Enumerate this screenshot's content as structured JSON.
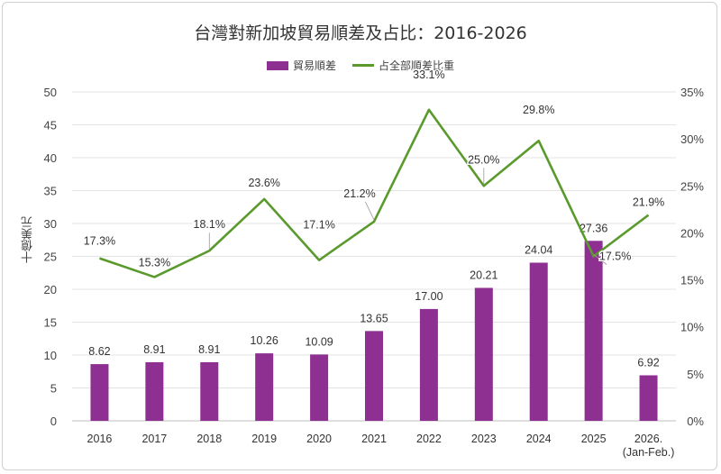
{
  "chart_data": {
    "type": "bar+line",
    "title": "台灣對新加坡貿易順差及占比：2016-2026",
    "ylabel": "十億美元",
    "categories": [
      "2016",
      "2017",
      "2018",
      "2019",
      "2020",
      "2021",
      "2022",
      "2023",
      "2024",
      "2025",
      "2026.\n(Jan-Feb.)"
    ],
    "category_lines": [
      [
        "2016"
      ],
      [
        "2017"
      ],
      [
        "2018"
      ],
      [
        "2019"
      ],
      [
        "2020"
      ],
      [
        "2021"
      ],
      [
        "2022"
      ],
      [
        "2023"
      ],
      [
        "2024"
      ],
      [
        "2025"
      ],
      [
        "2026.",
        "(Jan-Feb.)"
      ]
    ],
    "series": [
      {
        "name": "貿易順差",
        "type": "bar",
        "axis": "left",
        "color": "#8e2f92",
        "values": [
          8.62,
          8.91,
          8.91,
          10.26,
          10.09,
          13.65,
          17.0,
          20.21,
          24.04,
          27.36,
          6.92
        ],
        "labels": [
          "8.62",
          "8.91",
          "8.91",
          "10.26",
          "10.09",
          "13.65",
          "17.00",
          "20.21",
          "24.04",
          "27.36",
          "6.92"
        ]
      },
      {
        "name": "占全部順差比重",
        "type": "line",
        "axis": "right",
        "color": "#5a9a2c",
        "values": [
          17.3,
          15.3,
          18.1,
          23.6,
          17.1,
          21.2,
          33.1,
          25.0,
          29.8,
          17.5,
          21.9
        ],
        "labels": [
          "17.3%",
          "15.3%",
          "18.1%",
          "23.6%",
          "17.1%",
          "21.2%",
          "33.1%",
          "25.0%",
          "29.8%",
          "17.5%",
          "21.9%"
        ]
      }
    ],
    "ylim": [
      0,
      50
    ],
    "yticks": [
      "0",
      "5",
      "10",
      "15",
      "20",
      "25",
      "30",
      "35",
      "40",
      "45",
      "50"
    ],
    "y2lim": [
      0,
      35
    ],
    "y2ticks": [
      "0%",
      "5%",
      "10%",
      "15%",
      "20%",
      "25%",
      "30%",
      "35%"
    ],
    "grid": true,
    "legend": "top"
  }
}
